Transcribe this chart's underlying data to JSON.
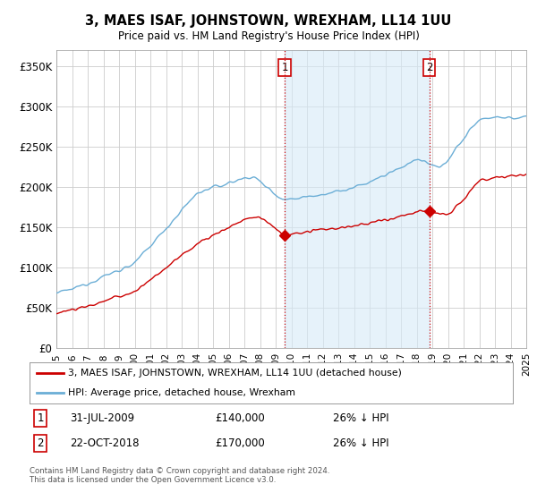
{
  "title": "3, MAES ISAF, JOHNSTOWN, WREXHAM, LL14 1UU",
  "subtitle": "Price paid vs. HM Land Registry's House Price Index (HPI)",
  "xlim_start": 1995.0,
  "xlim_end": 2025.0,
  "ylim": [
    0,
    370000
  ],
  "yticks": [
    0,
    50000,
    100000,
    150000,
    200000,
    250000,
    300000,
    350000
  ],
  "ytick_labels": [
    "£0",
    "£50K",
    "£100K",
    "£150K",
    "£200K",
    "£250K",
    "£300K",
    "£350K"
  ],
  "hpi_color": "#6baed6",
  "hpi_fill_color": "#d6eaf8",
  "price_color": "#cc0000",
  "marker1_date": 2009.58,
  "marker1_price": 140000,
  "marker1_label": "31-JUL-2009",
  "marker1_amount": "£140,000",
  "marker1_hpi": "26% ↓ HPI",
  "marker2_date": 2018.81,
  "marker2_price": 170000,
  "marker2_label": "22-OCT-2018",
  "marker2_amount": "£170,000",
  "marker2_hpi": "26% ↓ HPI",
  "legend_line1": "3, MAES ISAF, JOHNSTOWN, WREXHAM, LL14 1UU (detached house)",
  "legend_line2": "HPI: Average price, detached house, Wrexham",
  "footnote": "Contains HM Land Registry data © Crown copyright and database right 2024.\nThis data is licensed under the Open Government Licence v3.0.",
  "background_color": "#ffffff",
  "grid_color": "#cccccc"
}
